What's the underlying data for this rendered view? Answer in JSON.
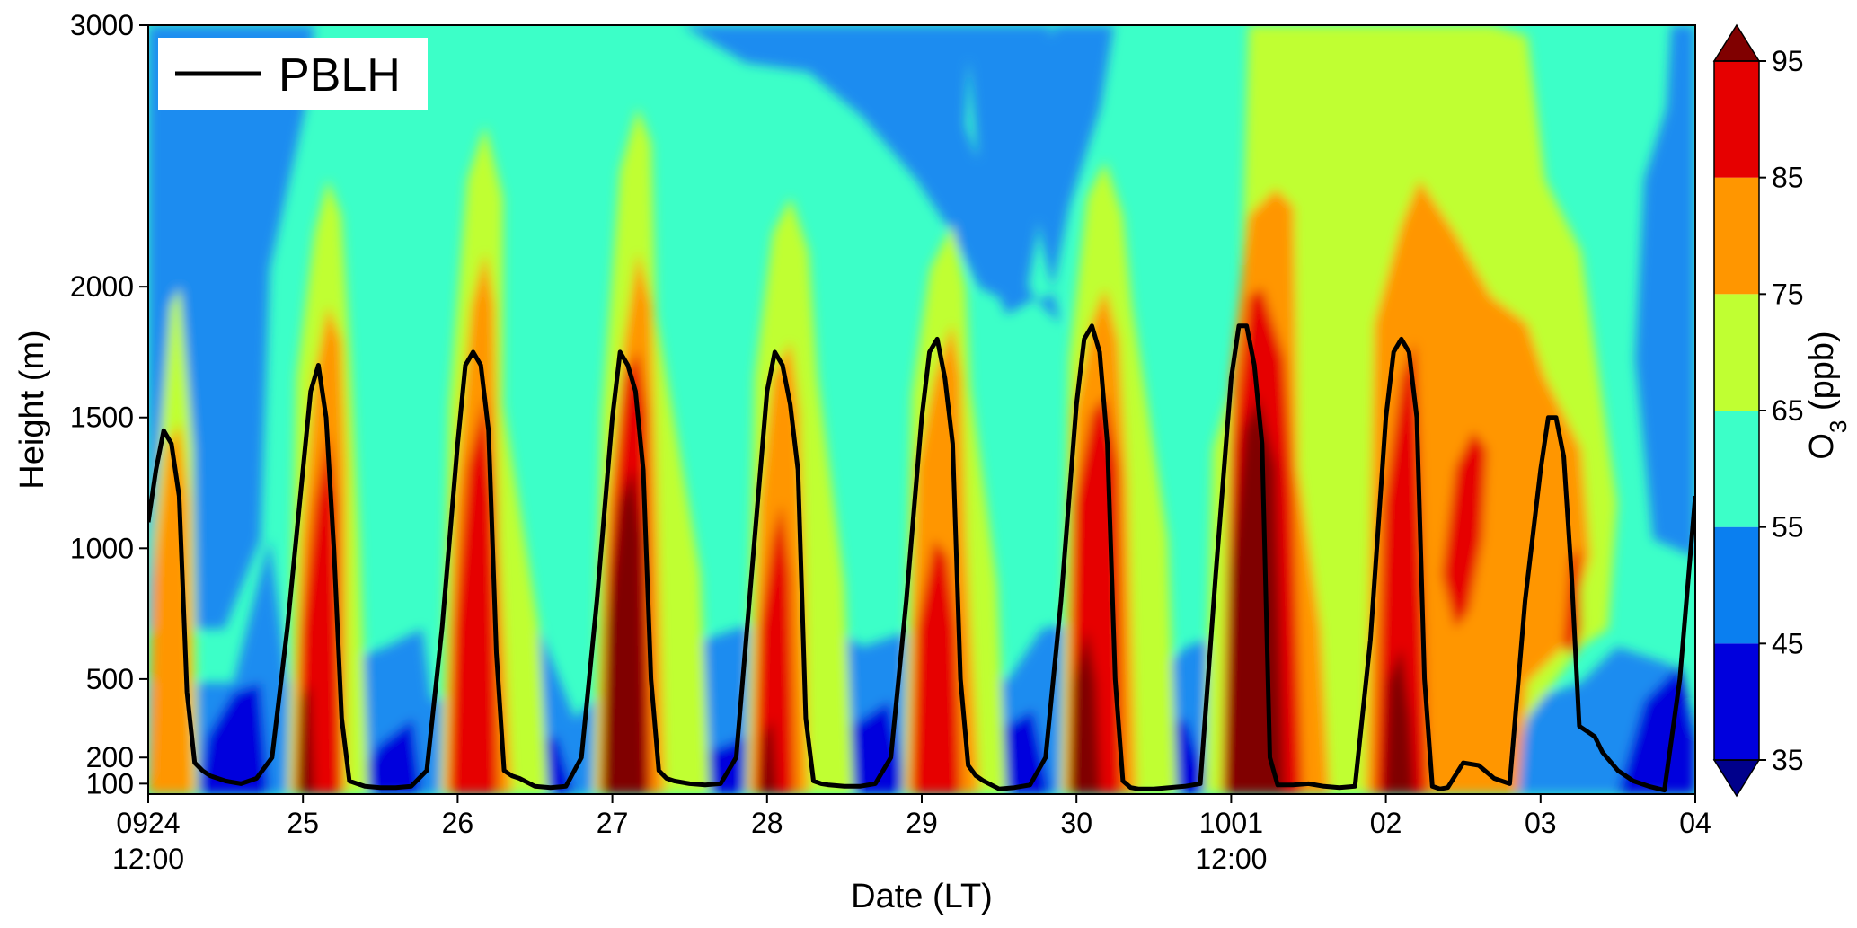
{
  "chart_data": {
    "type": "heatmap",
    "title": "",
    "xlabel": "Date (LT)",
    "ylabel": "Height (m)",
    "x_tick_labels": [
      [
        "0924",
        "12:00"
      ],
      [
        "25",
        ""
      ],
      [
        "26",
        ""
      ],
      [
        "27",
        ""
      ],
      [
        "28",
        ""
      ],
      [
        "29",
        ""
      ],
      [
        "30",
        ""
      ],
      [
        "1001",
        "12:00"
      ],
      [
        "02",
        ""
      ],
      [
        "03",
        ""
      ],
      [
        "04",
        ""
      ]
    ],
    "y_ticks": [
      100,
      200,
      500,
      1000,
      1500,
      2000,
      3000
    ],
    "ylim": [
      60,
      3000
    ],
    "colorbar": {
      "label_main": "O",
      "label_sub": "3",
      "label_unit": " (ppb)",
      "levels": [
        35,
        45,
        55,
        65,
        75,
        85,
        95
      ],
      "colors": [
        "#00008b",
        "#0000dd",
        "#0a7ff0",
        "#1e8cf0",
        "#3cffc8",
        "#c0ff32",
        "#ff9600",
        "#e60000",
        "#800000"
      ],
      "extend": "both"
    },
    "legend": {
      "label": "PBLH",
      "position": "top-left"
    },
    "series": [
      {
        "name": "PBLH",
        "color": "#000000",
        "x_days": [
          0,
          0.05,
          0.1,
          0.15,
          0.2,
          0.25,
          0.3,
          0.35,
          0.4,
          0.5,
          0.6,
          0.7,
          0.8,
          0.9,
          1.0,
          1.05,
          1.1,
          1.15,
          1.2,
          1.25,
          1.3,
          1.35,
          1.4,
          1.5,
          1.6,
          1.7,
          1.8,
          1.9,
          2.0,
          2.05,
          2.1,
          2.15,
          2.2,
          2.25,
          2.3,
          2.35,
          2.4,
          2.5,
          2.6,
          2.7,
          2.8,
          2.9,
          3.0,
          3.05,
          3.1,
          3.15,
          3.2,
          3.25,
          3.3,
          3.35,
          3.4,
          3.5,
          3.6,
          3.7,
          3.8,
          3.9,
          4.0,
          4.05,
          4.1,
          4.15,
          4.2,
          4.25,
          4.3,
          4.35,
          4.4,
          4.5,
          4.6,
          4.7,
          4.8,
          4.9,
          5.0,
          5.05,
          5.1,
          5.15,
          5.2,
          5.25,
          5.3,
          5.35,
          5.4,
          5.5,
          5.6,
          5.7,
          5.8,
          5.9,
          6.0,
          6.05,
          6.1,
          6.15,
          6.2,
          6.25,
          6.3,
          6.35,
          6.4,
          6.5,
          6.6,
          6.7,
          6.8,
          6.9,
          7.0,
          7.05,
          7.1,
          7.15,
          7.2,
          7.25,
          7.3,
          7.35,
          7.4,
          7.5,
          7.6,
          7.7,
          7.8,
          7.9,
          8.0,
          8.05,
          8.1,
          8.15,
          8.2,
          8.25,
          8.3,
          8.35,
          8.4,
          8.5,
          8.6,
          8.7,
          8.8,
          8.9,
          9.0,
          9.05,
          9.1,
          9.15,
          9.2,
          9.25,
          9.3,
          9.35,
          9.4,
          9.5,
          9.6,
          9.7,
          9.8,
          9.9,
          10.0
        ],
        "values_m": [
          1100,
          1300,
          1450,
          1400,
          1200,
          450,
          180,
          150,
          130,
          110,
          100,
          120,
          200,
          700,
          1300,
          1600,
          1700,
          1500,
          1000,
          350,
          110,
          100,
          90,
          85,
          85,
          90,
          150,
          700,
          1400,
          1700,
          1750,
          1700,
          1450,
          600,
          150,
          130,
          120,
          90,
          85,
          90,
          200,
          800,
          1500,
          1750,
          1700,
          1600,
          1300,
          500,
          150,
          120,
          110,
          100,
          95,
          100,
          200,
          900,
          1600,
          1750,
          1700,
          1550,
          1300,
          350,
          110,
          100,
          95,
          90,
          90,
          100,
          200,
          800,
          1500,
          1750,
          1800,
          1650,
          1400,
          500,
          170,
          130,
          110,
          80,
          85,
          95,
          200,
          800,
          1550,
          1800,
          1850,
          1750,
          1400,
          500,
          110,
          85,
          80,
          80,
          85,
          90,
          100,
          900,
          1650,
          1850,
          1850,
          1700,
          1400,
          200,
          95,
          95,
          95,
          100,
          90,
          85,
          90,
          650,
          1500,
          1750,
          1800,
          1750,
          1500,
          500,
          90,
          80,
          85,
          180,
          170,
          120,
          100,
          800,
          1300,
          1500,
          1500,
          1350,
          900,
          320,
          300,
          280,
          220,
          150,
          110,
          90,
          75,
          500,
          1200
        ]
      }
    ]
  }
}
